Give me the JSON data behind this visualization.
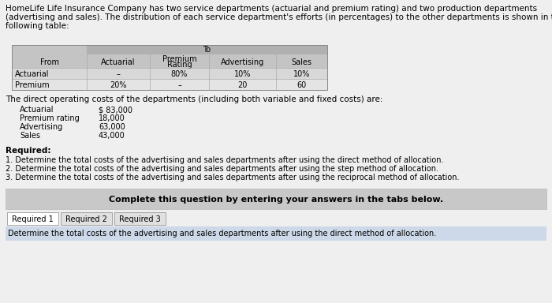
{
  "title_lines": [
    "HomeLife Life Insurance Company has two service departments (actuarial and premium rating) and two production departments",
    "(advertising and sales). The distribution of each service department's efforts (in percentages) to the other departments is shown in the",
    "following table:"
  ],
  "table_header_to": "To",
  "col_headers": [
    "From",
    "Actuarial",
    "Premium\nRating",
    "Advertising",
    "Sales"
  ],
  "table_rows": [
    [
      "Actuarial",
      "–",
      "80%",
      "10%",
      "10%"
    ],
    [
      "Premium",
      "20%",
      "–",
      "20",
      "60"
    ]
  ],
  "costs_header": "The direct operating costs of the departments (including both variable and fixed costs) are:",
  "costs_rows": [
    [
      "Actuarial",
      "$ 83,000"
    ],
    [
      "Premium rating",
      "18,000"
    ],
    [
      "Advertising",
      "63,000"
    ],
    [
      "Sales",
      "43,000"
    ]
  ],
  "required_header": "Required:",
  "required_items": [
    "1. Determine the total costs of the advertising and sales departments after using the direct method of allocation.",
    "2. Determine the total costs of the advertising and sales departments after using the step method of allocation.",
    "3. Determine the total costs of the advertising and sales departments after using the reciprocal method of allocation."
  ],
  "complete_text": "Complete this question by entering your answers in the tabs below.",
  "tab_labels": [
    "Required 1",
    "Required 2",
    "Required 3"
  ],
  "bottom_text": "Determine the total costs of the advertising and sales departments after using the direct method of allocation.",
  "bg_color": "#efefef",
  "table_to_bg": "#b0b0b0",
  "table_header_bg": "#c4c4c4",
  "table_row1_bg": "#d8d8d8",
  "table_row2_bg": "#e4e4e4",
  "complete_box_bg": "#c8c8c8",
  "tab_active_bg": "#ffffff",
  "tab_inactive_bg": "#e0e0e0",
  "tab_border": "#999999",
  "bottom_bar_bg": "#cdd8e8",
  "grid_color": "#aaaaaa",
  "font_size_title": 7.5,
  "font_size_table": 7.0,
  "font_size_body": 7.5,
  "font_size_req": 7.5,
  "font_size_complete": 8.0,
  "font_size_tab": 7.0,
  "font_size_bottom": 7.5
}
